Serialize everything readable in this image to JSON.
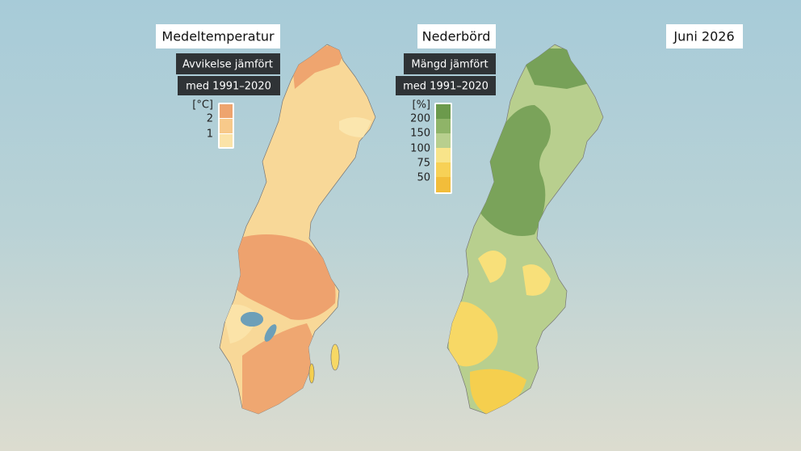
{
  "header": {
    "date": "Juni 2026"
  },
  "maps": [
    {
      "title": "Medeltemperatur",
      "subtitle": [
        "Avvikelse jämfört",
        "med 1991–2020"
      ],
      "legend": {
        "unit": "[°C]",
        "labels": [
          "2",
          "1"
        ]
      }
    },
    {
      "title": "Nederbörd",
      "subtitle": [
        "Mängd jämfört",
        "med 1991–2020"
      ],
      "legend": {
        "unit": "[%]",
        "labels": [
          "200",
          "150",
          "100",
          "75",
          "50"
        ]
      }
    }
  ]
}
